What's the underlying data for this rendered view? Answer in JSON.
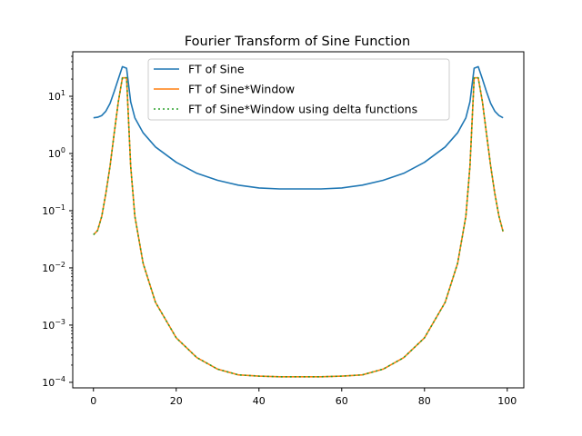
{
  "chart_data": {
    "type": "line",
    "title": "Fourier Transform of Sine Function",
    "xlabel": "",
    "ylabel": "",
    "yscale": "log",
    "xlim": [
      -5,
      104
    ],
    "ylim": [
      8e-05,
      60
    ],
    "xticks": [
      0,
      20,
      40,
      60,
      80,
      100
    ],
    "xtick_labels": [
      "0",
      "20",
      "40",
      "60",
      "80",
      "100"
    ],
    "yticks": [
      0.0001,
      0.001,
      0.01,
      0.1,
      1,
      10
    ],
    "ytick_labels": [
      {
        "base": "10",
        "exp": "−4"
      },
      {
        "base": "10",
        "exp": "−3"
      },
      {
        "base": "10",
        "exp": "−2"
      },
      {
        "base": "10",
        "exp": "−1"
      },
      {
        "base": "10",
        "exp": "0"
      },
      {
        "base": "10",
        "exp": "1"
      }
    ],
    "grid": false,
    "legend_position": "upper center",
    "x": [
      0,
      1,
      2,
      3,
      4,
      5,
      6,
      7,
      8,
      9,
      10,
      12,
      15,
      20,
      25,
      30,
      35,
      40,
      45,
      50,
      55,
      60,
      65,
      70,
      75,
      80,
      85,
      88,
      90,
      91,
      92,
      93,
      94,
      95,
      96,
      97,
      98,
      99
    ],
    "series": [
      {
        "name": "FT of Sine",
        "color": "#1f77b4",
        "dash": "solid",
        "values": [
          4.2,
          4.3,
          4.6,
          5.5,
          7.5,
          12,
          20,
          33,
          31,
          8,
          4.2,
          2.3,
          1.3,
          0.7,
          0.45,
          0.34,
          0.28,
          0.25,
          0.24,
          0.24,
          0.24,
          0.25,
          0.28,
          0.34,
          0.45,
          0.7,
          1.3,
          2.3,
          4.2,
          8,
          31,
          33,
          20,
          12,
          7.5,
          5.5,
          4.6,
          4.2
        ]
      },
      {
        "name": "FT of Sine*Window",
        "color": "#ff7f0e",
        "dash": "solid",
        "values": [
          0.038,
          0.045,
          0.08,
          0.2,
          0.6,
          2.2,
          8,
          21,
          21,
          0.6,
          0.08,
          0.012,
          0.0025,
          0.0006,
          0.00027,
          0.00017,
          0.000135,
          0.000128,
          0.000125,
          0.000125,
          0.000125,
          0.000128,
          0.000135,
          0.00017,
          0.00027,
          0.0006,
          0.0025,
          0.012,
          0.08,
          0.6,
          21,
          21,
          8,
          2.2,
          0.6,
          0.2,
          0.08,
          0.043
        ]
      },
      {
        "name": "FT of Sine*Window using delta functions",
        "color": "#2ca02c",
        "dash": "dotted",
        "values": [
          0.038,
          0.045,
          0.08,
          0.2,
          0.6,
          2.2,
          8,
          21,
          21,
          0.6,
          0.08,
          0.012,
          0.0025,
          0.0006,
          0.00027,
          0.00017,
          0.000135,
          0.000128,
          0.000125,
          0.000125,
          0.000125,
          0.000128,
          0.000135,
          0.00017,
          0.00027,
          0.0006,
          0.0025,
          0.012,
          0.08,
          0.6,
          21,
          21,
          8,
          2.2,
          0.6,
          0.2,
          0.08,
          0.043
        ]
      }
    ]
  }
}
